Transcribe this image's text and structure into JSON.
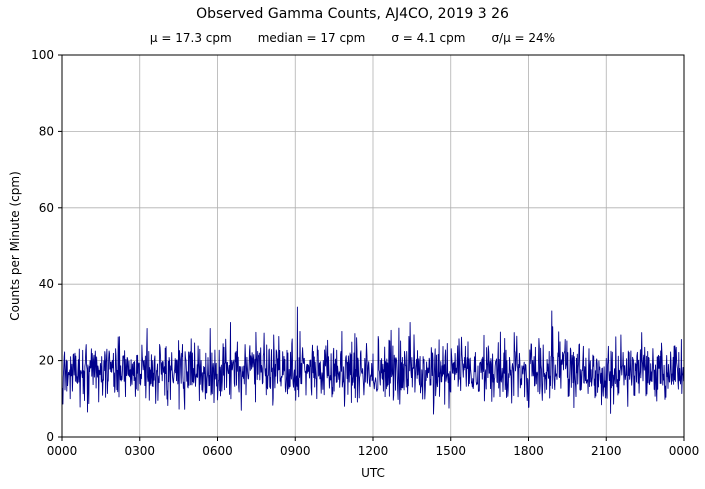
{
  "chart_data": {
    "type": "line",
    "title": "Observed Gamma Counts, AJ4CO, 2019 3 26",
    "stats": {
      "mu": "μ = 17.3 cpm",
      "median": "median = 17 cpm",
      "sigma": "σ = 4.1 cpm",
      "sigma_over_mu": "σ/μ = 24%"
    },
    "xlabel": "UTC",
    "ylabel": "Counts per Minute (cpm)",
    "xlim_minutes": [
      0,
      1440
    ],
    "ylim": [
      0,
      100
    ],
    "grid": true,
    "grid_color": "#b0b0b0",
    "line_color": "#00008b",
    "y_ticks": [
      0,
      20,
      40,
      60,
      80,
      100
    ],
    "x_ticks": [
      {
        "minute": 0,
        "label": "0000"
      },
      {
        "minute": 180,
        "label": "0300"
      },
      {
        "minute": 360,
        "label": "0600"
      },
      {
        "minute": 540,
        "label": "0900"
      },
      {
        "minute": 720,
        "label": "1200"
      },
      {
        "minute": 900,
        "label": "1500"
      },
      {
        "minute": 1080,
        "label": "1800"
      },
      {
        "minute": 1260,
        "label": "2100"
      },
      {
        "minute": 1440,
        "label": "0000"
      }
    ],
    "series": {
      "name": "observed gamma counts",
      "sampling_minutes": 1,
      "mean_cpm": 17.3,
      "median_cpm": 17,
      "sigma_cpm": 4.1,
      "clip_cpm": [
        6,
        30
      ],
      "notable_peaks": [
        {
          "minute": 545,
          "cpm": 34
        },
        {
          "minute": 806,
          "cpm": 30
        },
        {
          "minute": 1134,
          "cpm": 33
        }
      ],
      "notable_dips": [
        {
          "minute": 415,
          "cpm": 7
        },
        {
          "minute": 1310,
          "cpm": 8
        }
      ],
      "seed": 20190326
    }
  }
}
